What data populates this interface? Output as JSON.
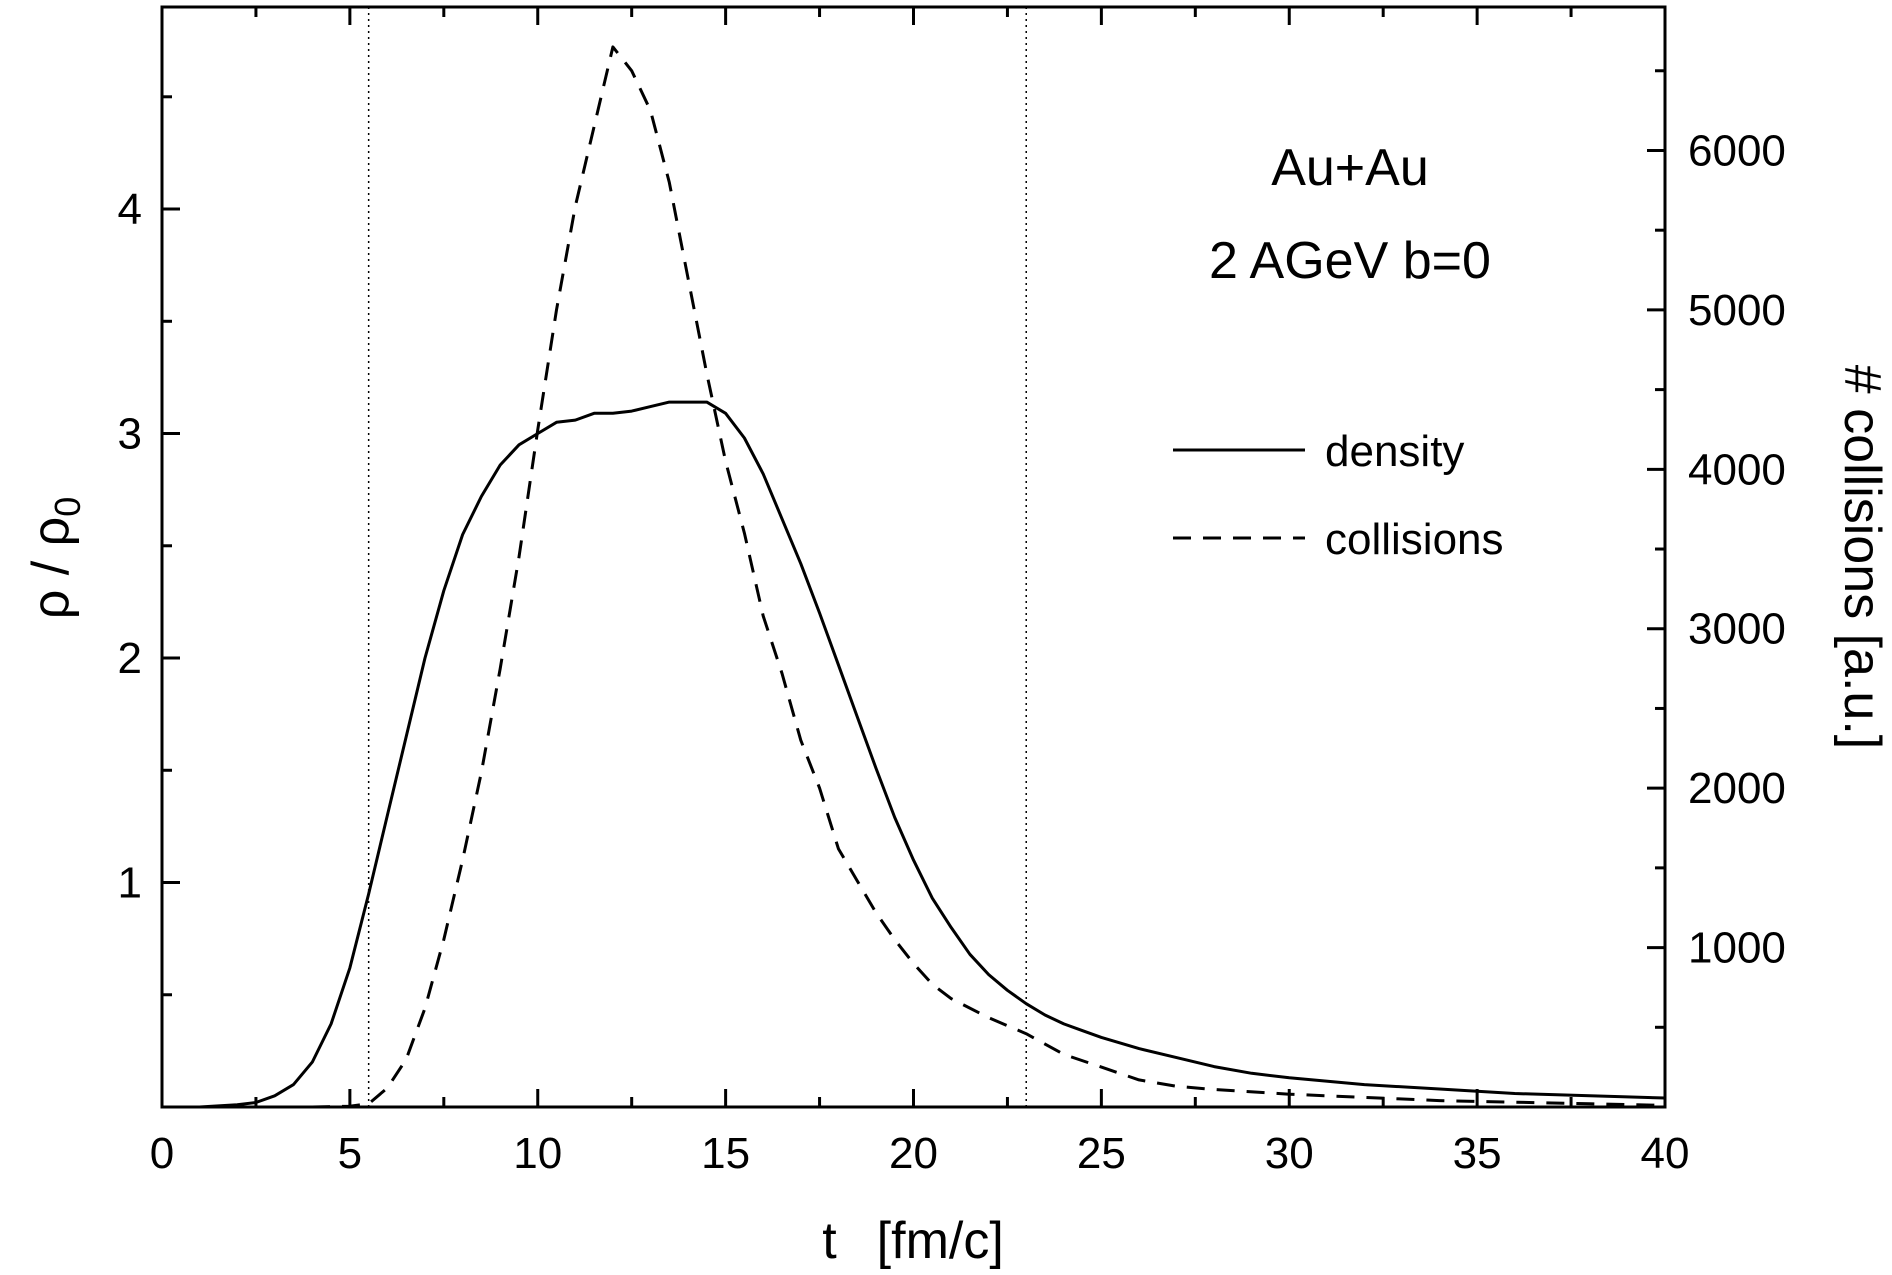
{
  "chart_data": {
    "type": "line",
    "x_axis": {
      "label_var": "t",
      "label_unit": "[fm/c]",
      "range": [
        0,
        40
      ],
      "ticks": [
        0,
        5,
        10,
        15,
        20,
        25,
        30,
        35,
        40
      ],
      "tick_labels": [
        "0",
        "5",
        "10",
        "15",
        "20",
        "25",
        "30",
        "35",
        "40"
      ]
    },
    "y_left": {
      "label_main": "ρ / ρ",
      "label_sub": "0",
      "range": [
        0,
        4.9
      ],
      "ticks": [
        1,
        2,
        3,
        4
      ],
      "tick_labels": [
        "1",
        "2",
        "3",
        "4"
      ]
    },
    "y_right": {
      "label": "# collisions  [a.u.]",
      "range": [
        0,
        6900
      ],
      "ticks": [
        1000,
        2000,
        3000,
        4000,
        5000,
        6000
      ],
      "tick_labels": [
        "1000",
        "2000",
        "3000",
        "4000",
        "5000",
        "6000"
      ]
    },
    "vlines": [
      5.5,
      23
    ],
    "annotation": [
      "Au+Au",
      "2 AGeV b=0"
    ],
    "legend": {
      "position": "right",
      "labels": [
        "density",
        "collisions"
      ]
    },
    "series": [
      {
        "name": "density",
        "axis": "left",
        "style": "solid",
        "x": [
          0,
          1,
          1.5,
          2,
          2.5,
          3,
          3.5,
          4,
          4.5,
          5,
          5.5,
          6,
          6.5,
          7,
          7.5,
          8,
          8.5,
          9,
          9.5,
          10,
          10.5,
          11,
          11.5,
          12,
          12.5,
          13,
          13.5,
          14,
          14.5,
          15,
          15.5,
          16,
          16.5,
          17,
          17.5,
          18,
          18.5,
          19,
          19.5,
          20,
          20.5,
          21,
          21.5,
          22,
          22.5,
          23,
          23.5,
          24,
          24.5,
          25,
          26,
          27,
          28,
          29,
          30,
          32,
          34,
          36,
          38,
          40
        ],
        "y": [
          0,
          0,
          0.005,
          0.01,
          0.02,
          0.05,
          0.1,
          0.2,
          0.37,
          0.62,
          0.95,
          1.3,
          1.65,
          2.0,
          2.3,
          2.55,
          2.72,
          2.86,
          2.95,
          3.0,
          3.05,
          3.06,
          3.09,
          3.09,
          3.1,
          3.12,
          3.14,
          3.14,
          3.14,
          3.09,
          2.98,
          2.82,
          2.62,
          2.42,
          2.2,
          1.97,
          1.74,
          1.51,
          1.29,
          1.1,
          0.93,
          0.8,
          0.68,
          0.59,
          0.52,
          0.46,
          0.41,
          0.37,
          0.34,
          0.31,
          0.26,
          0.22,
          0.18,
          0.15,
          0.13,
          0.1,
          0.08,
          0.06,
          0.05,
          0.04
        ]
      },
      {
        "name": "collisions",
        "axis": "right",
        "style": "dashed",
        "x": [
          0,
          2,
          4,
          5,
          5.5,
          6,
          6.5,
          7,
          7.5,
          8,
          8.5,
          9,
          9.5,
          10,
          10.5,
          11,
          11.5,
          12,
          12.5,
          13,
          13.5,
          14,
          14.5,
          15,
          15.5,
          16,
          16.5,
          17,
          17.5,
          18,
          18.5,
          19,
          19.5,
          20,
          20.5,
          21,
          22,
          23,
          24,
          25,
          26,
          27,
          28,
          30,
          32,
          34,
          36,
          38,
          40
        ],
        "y": [
          0,
          0,
          0,
          5,
          20,
          120,
          300,
          620,
          1050,
          1550,
          2100,
          2750,
          3450,
          4250,
          5000,
          5650,
          6150,
          6650,
          6500,
          6250,
          5800,
          5200,
          4600,
          4050,
          3600,
          3080,
          2720,
          2300,
          2000,
          1620,
          1420,
          1220,
          1050,
          900,
          770,
          680,
          560,
          460,
          330,
          250,
          170,
          130,
          110,
          80,
          60,
          40,
          30,
          20,
          10
        ]
      }
    ]
  }
}
